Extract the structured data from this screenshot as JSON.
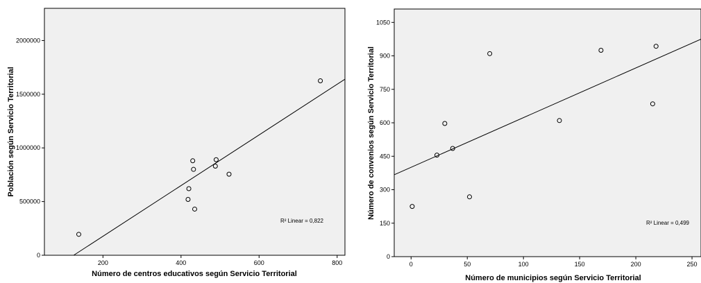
{
  "chart_data": [
    {
      "type": "scatter",
      "xlabel": "Número de centros educativos según Servicio Territorial",
      "ylabel": "Población según Servicio Territorial",
      "xlim": [
        50,
        820
      ],
      "ylim": [
        0,
        2300000
      ],
      "xticks": [
        200,
        400,
        600,
        800
      ],
      "xtick_labels": [
        "200",
        "400",
        "600",
        "800"
      ],
      "yticks": [
        0,
        500000,
        1000000,
        1500000,
        2000000
      ],
      "ytick_labels": [
        "0",
        "500000",
        "1000000",
        "1500000",
        "2000000"
      ],
      "points": [
        {
          "x": 138,
          "y": 195000
        },
        {
          "x": 418,
          "y": 520000
        },
        {
          "x": 420,
          "y": 620000
        },
        {
          "x": 430,
          "y": 880000
        },
        {
          "x": 432,
          "y": 800000
        },
        {
          "x": 435,
          "y": 430000
        },
        {
          "x": 488,
          "y": 830000
        },
        {
          "x": 490,
          "y": 890000
        },
        {
          "x": 523,
          "y": 755000
        },
        {
          "x": 757,
          "y": 1625000
        }
      ],
      "fit_line": [
        {
          "x": 125,
          "y": 0
        },
        {
          "x": 820,
          "y": 1640000
        }
      ],
      "r2_label": "R² Linear = 0,822",
      "grid": false
    },
    {
      "type": "scatter",
      "xlabel": "Número de municipios según Servicio Territorial",
      "ylabel": "Número de convenios según Servicio Territorial",
      "xlim": [
        -15,
        258
      ],
      "ylim": [
        0,
        1110
      ],
      "xticks": [
        0,
        50,
        100,
        150,
        200,
        250
      ],
      "xtick_labels": [
        "0",
        "50",
        "100",
        "150",
        "200",
        "250"
      ],
      "yticks": [
        0,
        150,
        300,
        450,
        600,
        750,
        900,
        1050
      ],
      "ytick_labels": [
        "0",
        "150",
        "300",
        "450",
        "600",
        "750",
        "900",
        "1050"
      ],
      "points": [
        {
          "x": 1,
          "y": 225
        },
        {
          "x": 23,
          "y": 455
        },
        {
          "x": 30,
          "y": 597
        },
        {
          "x": 37,
          "y": 485
        },
        {
          "x": 52,
          "y": 268
        },
        {
          "x": 70,
          "y": 910
        },
        {
          "x": 132,
          "y": 610
        },
        {
          "x": 169,
          "y": 925
        },
        {
          "x": 215,
          "y": 685
        },
        {
          "x": 218,
          "y": 943
        }
      ],
      "fit_line": [
        {
          "x": -15,
          "y": 367
        },
        {
          "x": 258,
          "y": 975
        }
      ],
      "r2_label": "R² Linear = 0,499",
      "grid": false
    }
  ]
}
